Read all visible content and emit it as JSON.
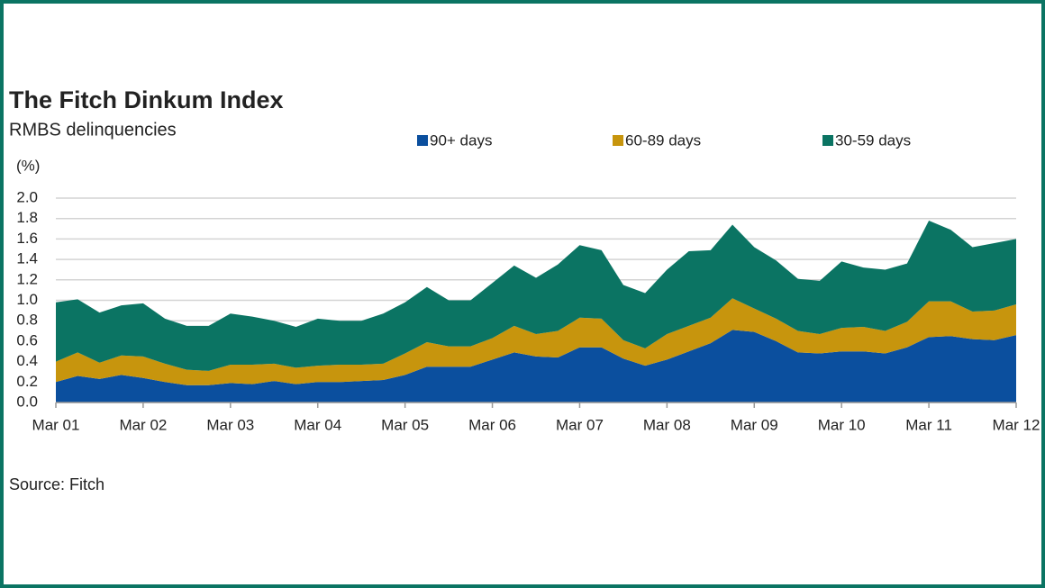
{
  "chart_data": {
    "type": "stacked-area",
    "title": "The Fitch Dinkum Index",
    "subtitle": "RMBS delinquencies",
    "y_label": "(%)",
    "source": "Source: Fitch",
    "categories": [
      "Mar 01",
      null,
      null,
      null,
      "Mar 02",
      null,
      null,
      null,
      "Mar 03",
      null,
      null,
      null,
      "Mar 04",
      null,
      null,
      null,
      "Mar 05",
      null,
      null,
      null,
      "Mar 06",
      null,
      null,
      null,
      "Mar 07",
      null,
      null,
      null,
      "Mar 08",
      null,
      null,
      null,
      "Mar 09",
      null,
      null,
      null,
      "Mar 10",
      null,
      null,
      null,
      "Mar 11",
      null,
      null,
      null,
      "Mar 12"
    ],
    "series": [
      {
        "name": "90+ days",
        "color": "#0b4f9e",
        "values": [
          0.2,
          0.26,
          0.23,
          0.27,
          0.24,
          0.2,
          0.17,
          0.17,
          0.19,
          0.18,
          0.21,
          0.18,
          0.2,
          0.2,
          0.21,
          0.22,
          0.27,
          0.35,
          0.35,
          0.35,
          0.42,
          0.49,
          0.45,
          0.44,
          0.54,
          0.54,
          0.43,
          0.36,
          0.42,
          0.5,
          0.58,
          0.71,
          0.69,
          0.6,
          0.49,
          0.48,
          0.5,
          0.5,
          0.48,
          0.54,
          0.64,
          0.65,
          0.62,
          0.61,
          0.66
        ]
      },
      {
        "name": "60-89 days",
        "color": "#c7950d",
        "values": [
          0.2,
          0.23,
          0.16,
          0.19,
          0.21,
          0.18,
          0.15,
          0.14,
          0.18,
          0.19,
          0.17,
          0.16,
          0.16,
          0.17,
          0.16,
          0.16,
          0.21,
          0.24,
          0.2,
          0.2,
          0.21,
          0.26,
          0.22,
          0.26,
          0.29,
          0.28,
          0.18,
          0.17,
          0.25,
          0.25,
          0.25,
          0.31,
          0.23,
          0.22,
          0.21,
          0.19,
          0.23,
          0.24,
          0.22,
          0.25,
          0.35,
          0.34,
          0.27,
          0.29,
          0.3
        ]
      },
      {
        "name": "30-59 days",
        "color": "#0b7463",
        "values": [
          0.58,
          0.52,
          0.49,
          0.49,
          0.52,
          0.44,
          0.43,
          0.44,
          0.5,
          0.47,
          0.42,
          0.4,
          0.46,
          0.43,
          0.43,
          0.49,
          0.5,
          0.54,
          0.45,
          0.45,
          0.54,
          0.59,
          0.55,
          0.65,
          0.71,
          0.67,
          0.54,
          0.54,
          0.63,
          0.73,
          0.66,
          0.72,
          0.6,
          0.57,
          0.51,
          0.52,
          0.65,
          0.58,
          0.6,
          0.57,
          0.79,
          0.7,
          0.63,
          0.66,
          0.64
        ]
      }
    ],
    "ylim": [
      0,
      2
    ],
    "yticks": [
      {
        "value": 0,
        "label": "0.0"
      },
      {
        "value": 0.2,
        "label": "0.2"
      },
      {
        "value": 0.4,
        "label": "0.4"
      },
      {
        "value": 0.6,
        "label": "0.6"
      },
      {
        "value": 0.8,
        "label": "0.8"
      },
      {
        "value": 1,
        "label": "1.0"
      },
      {
        "value": 1.2,
        "label": "1.2"
      },
      {
        "value": 1.4,
        "label": "1.4"
      },
      {
        "value": 1.6,
        "label": "1.6"
      },
      {
        "value": 1.8,
        "label": "1.8"
      },
      {
        "value": 2,
        "label": "2.0"
      }
    ],
    "grid": true
  }
}
